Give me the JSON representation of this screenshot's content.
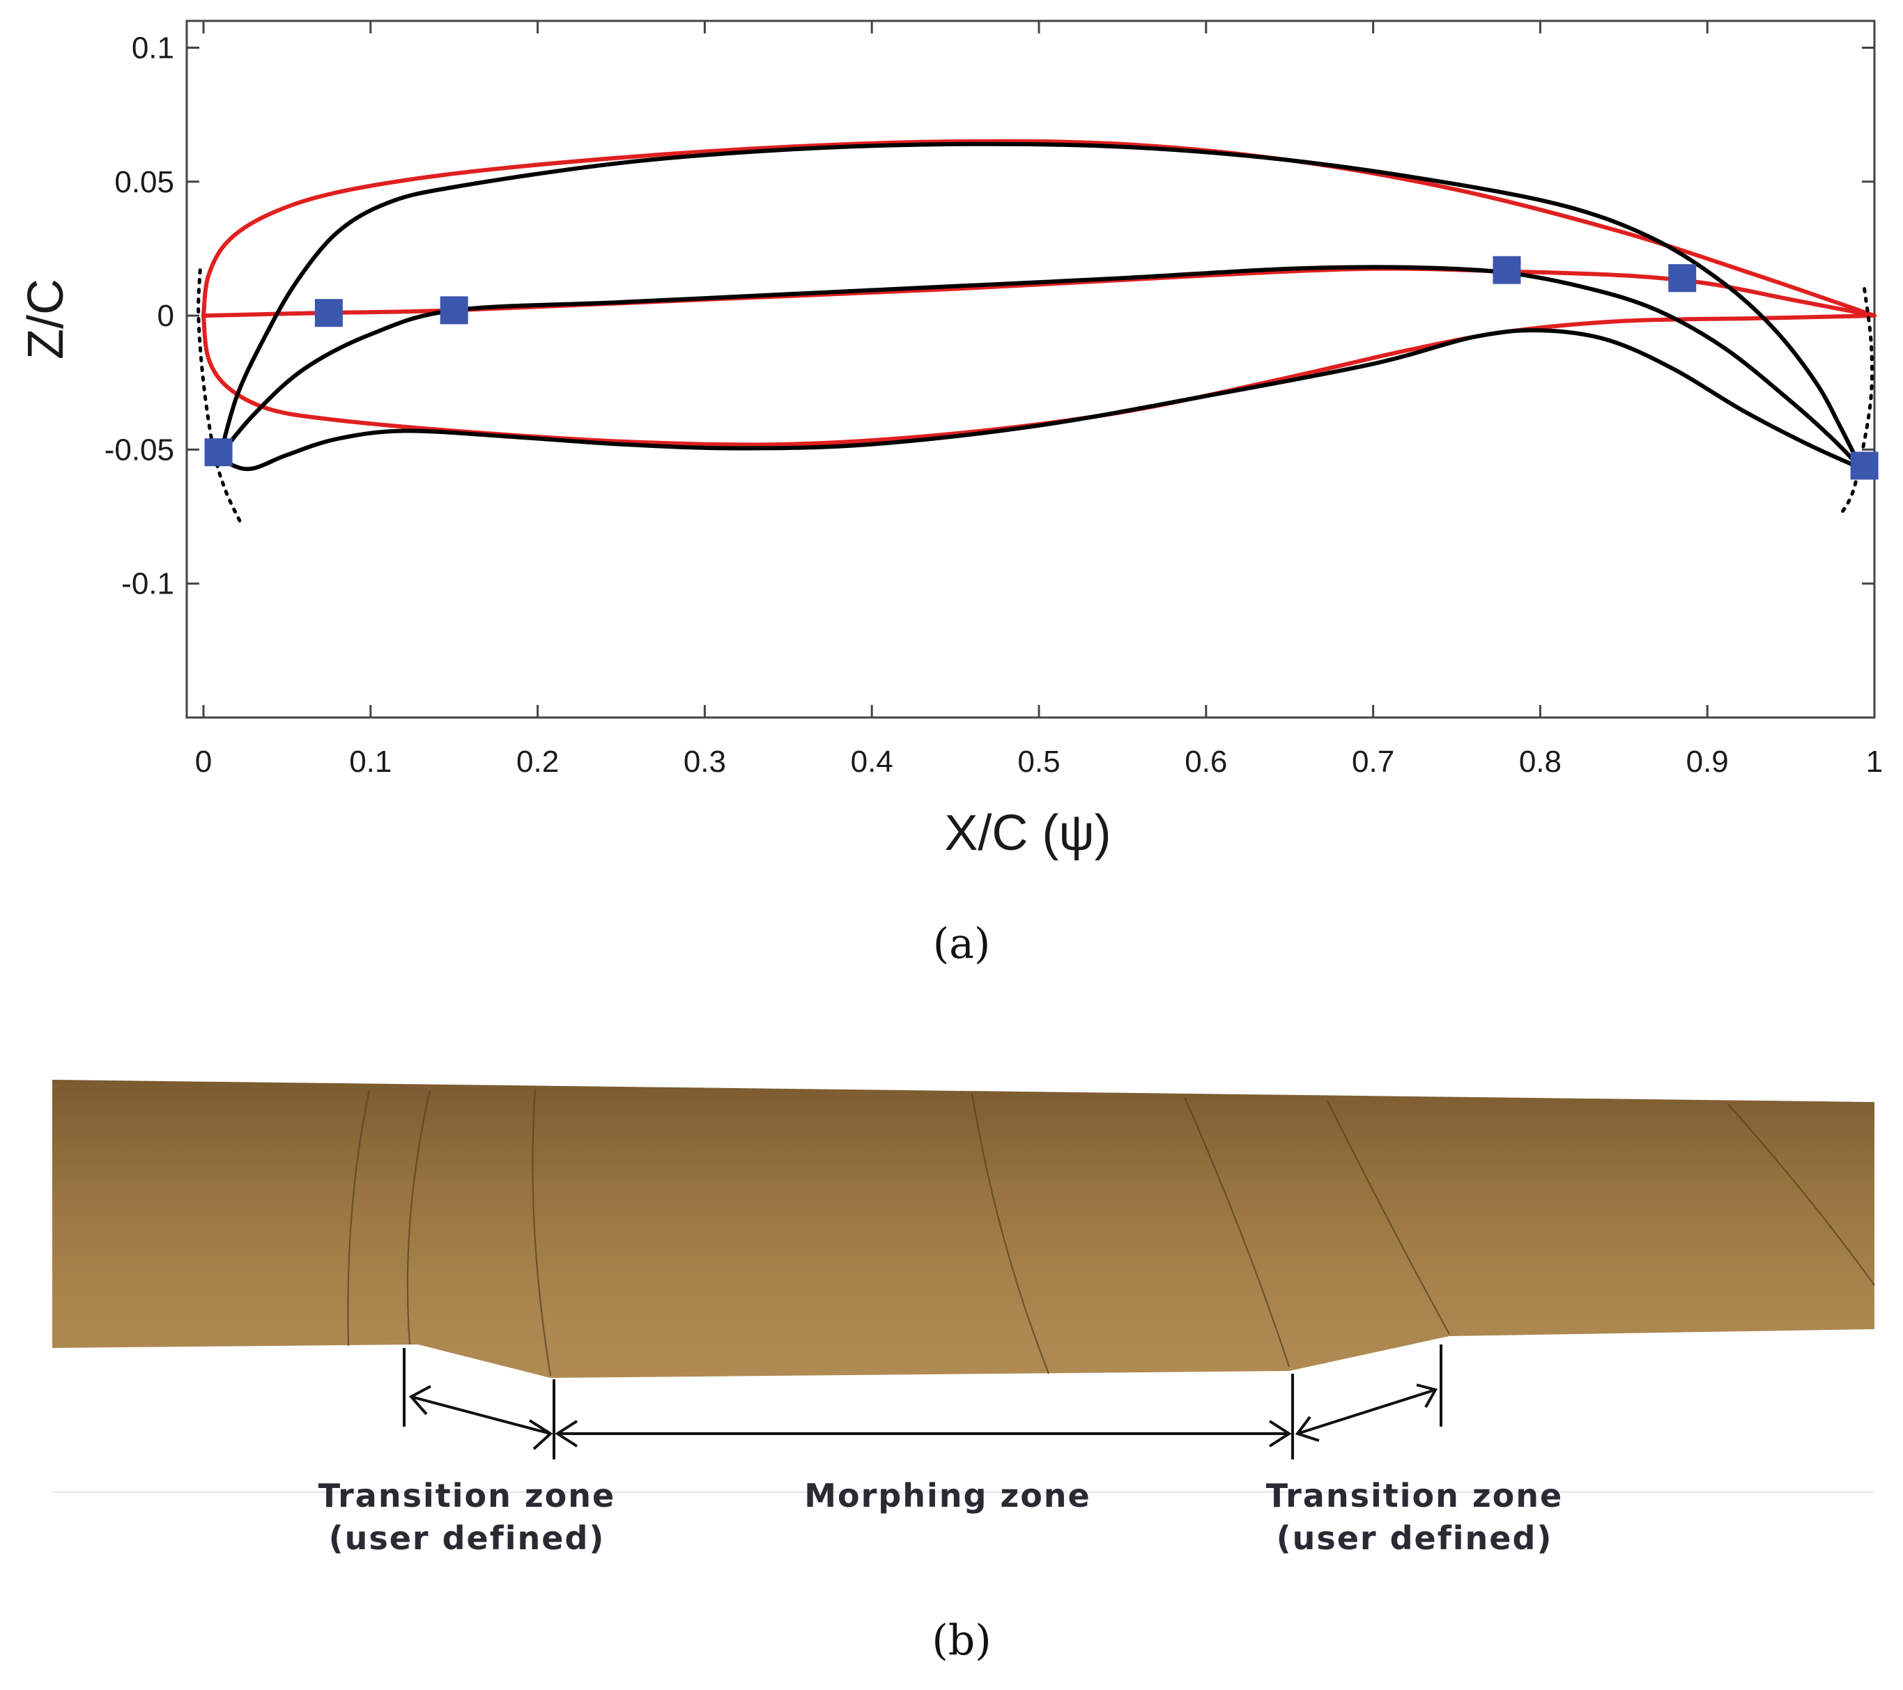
{
  "panels": {
    "a": {
      "caption": "(a)",
      "chart_data": {
        "type": "line",
        "xlabel": "X/C (ψ)",
        "ylabel": "Z/C",
        "xlim": [
          0,
          1
        ],
        "ylim": [
          -0.15,
          0.11
        ],
        "xticks": [
          0,
          0.1,
          0.2,
          0.3,
          0.4,
          0.5,
          0.6,
          0.7,
          0.8,
          0.9,
          1
        ],
        "yticks": [
          -0.1,
          -0.05,
          0,
          0.05,
          0.1
        ],
        "xtick_labels": [
          "0",
          "0.1",
          "0.2",
          "0.3",
          "0.4",
          "0.5",
          "0.6",
          "0.7",
          "0.8",
          "0.9",
          "1"
        ],
        "ytick_labels": [
          "-0.1",
          "-0.05",
          "0",
          "0.05",
          "0.1"
        ],
        "grid": false,
        "colors": {
          "baseline": "#e02020",
          "morphed": "#000000",
          "control_points": "#3b56ad",
          "guide": "#000000"
        },
        "series": [
          {
            "style": "baseline-upper",
            "color": "#e02020",
            "points": [
              [
                0,
                0
              ],
              [
                0.003,
                0.015
              ],
              [
                0.015,
                0.028
              ],
              [
                0.04,
                0.038
              ],
              [
                0.08,
                0.046
              ],
              [
                0.15,
                0.053
              ],
              [
                0.25,
                0.059
              ],
              [
                0.35,
                0.063
              ],
              [
                0.45,
                0.065
              ],
              [
                0.55,
                0.064
              ],
              [
                0.65,
                0.058
              ],
              [
                0.75,
                0.047
              ],
              [
                0.85,
                0.031
              ],
              [
                0.93,
                0.015
              ],
              [
                1,
                0
              ]
            ]
          },
          {
            "style": "baseline-lower",
            "color": "#e02020",
            "points": [
              [
                0,
                0
              ],
              [
                0.003,
                -0.016
              ],
              [
                0.015,
                -0.027
              ],
              [
                0.04,
                -0.035
              ],
              [
                0.08,
                -0.039
              ],
              [
                0.15,
                -0.043
              ],
              [
                0.25,
                -0.047
              ],
              [
                0.35,
                -0.048
              ],
              [
                0.45,
                -0.044
              ],
              [
                0.55,
                -0.036
              ],
              [
                0.65,
                -0.023
              ],
              [
                0.72,
                -0.013
              ],
              [
                0.78,
                -0.006
              ],
              [
                0.85,
                -0.002
              ],
              [
                0.93,
                -0.001
              ],
              [
                1,
                0
              ]
            ]
          },
          {
            "style": "baseline-camber",
            "color": "#e02020",
            "points": [
              [
                0,
                0
              ],
              [
                0.07,
                0.001
              ],
              [
                0.15,
                0.002
              ],
              [
                0.3,
                0.006
              ],
              [
                0.45,
                0.01
              ],
              [
                0.6,
                0.015
              ],
              [
                0.7,
                0.0175
              ],
              [
                0.78,
                0.0165
              ],
              [
                0.85,
                0.015
              ],
              [
                0.9,
                0.012
              ],
              [
                0.95,
                0.006
              ],
              [
                1,
                0
              ]
            ]
          },
          {
            "style": "morphed-upper",
            "color": "#000000",
            "points": [
              [
                0.01,
                -0.052
              ],
              [
                0.02,
                -0.03
              ],
              [
                0.035,
                -0.01
              ],
              [
                0.055,
                0.012
              ],
              [
                0.08,
                0.031
              ],
              [
                0.11,
                0.042
              ],
              [
                0.15,
                0.048
              ],
              [
                0.25,
                0.057
              ],
              [
                0.35,
                0.062
              ],
              [
                0.45,
                0.064
              ],
              [
                0.55,
                0.063
              ],
              [
                0.65,
                0.058
              ],
              [
                0.75,
                0.049
              ],
              [
                0.82,
                0.04
              ],
              [
                0.87,
                0.028
              ],
              [
                0.91,
                0.012
              ],
              [
                0.94,
                -0.005
              ],
              [
                0.965,
                -0.025
              ],
              [
                0.98,
                -0.042
              ],
              [
                0.992,
                -0.057
              ]
            ]
          },
          {
            "style": "morphed-lower",
            "color": "#000000",
            "points": [
              [
                0.01,
                -0.052
              ],
              [
                0.018,
                -0.056
              ],
              [
                0.03,
                -0.057
              ],
              [
                0.05,
                -0.052
              ],
              [
                0.08,
                -0.046
              ],
              [
                0.12,
                -0.043
              ],
              [
                0.18,
                -0.045
              ],
              [
                0.25,
                -0.048
              ],
              [
                0.32,
                -0.0495
              ],
              [
                0.4,
                -0.048
              ],
              [
                0.5,
                -0.041
              ],
              [
                0.6,
                -0.03
              ],
              [
                0.7,
                -0.018
              ],
              [
                0.76,
                -0.008
              ],
              [
                0.8,
                -0.0055
              ],
              [
                0.84,
                -0.009
              ],
              [
                0.88,
                -0.02
              ],
              [
                0.92,
                -0.035
              ],
              [
                0.96,
                -0.048
              ],
              [
                0.992,
                -0.057
              ]
            ]
          },
          {
            "style": "morphed-camber",
            "color": "#000000",
            "points": [
              [
                0.01,
                -0.052
              ],
              [
                0.03,
                -0.037
              ],
              [
                0.06,
                -0.02
              ],
              [
                0.1,
                -0.007
              ],
              [
                0.15,
                0.002
              ],
              [
                0.25,
                0.005
              ],
              [
                0.35,
                0.008
              ],
              [
                0.45,
                0.011
              ],
              [
                0.55,
                0.014
              ],
              [
                0.65,
                0.0175
              ],
              [
                0.72,
                0.018
              ],
              [
                0.78,
                0.016
              ],
              [
                0.83,
                0.01
              ],
              [
                0.87,
                0.002
              ],
              [
                0.91,
                -0.012
              ],
              [
                0.95,
                -0.032
              ],
              [
                0.975,
                -0.046
              ],
              [
                0.992,
                -0.057
              ]
            ]
          },
          {
            "style": "guide-dotted-le",
            "color": "#000000",
            "points": [
              [
                -0.002,
                0.017
              ],
              [
                -0.003,
                0.0
              ],
              [
                0.0,
                -0.025
              ],
              [
                0.006,
                -0.05
              ],
              [
                0.013,
                -0.065
              ],
              [
                0.022,
                -0.077
              ]
            ]
          },
          {
            "style": "guide-dotted-te",
            "color": "#000000",
            "points": [
              [
                0.994,
                0.01
              ],
              [
                0.998,
                -0.01
              ],
              [
                0.998,
                -0.03
              ],
              [
                0.993,
                -0.05
              ],
              [
                0.987,
                -0.066
              ],
              [
                0.98,
                -0.074
              ]
            ]
          }
        ],
        "control_points": [
          [
            0.075,
            0.001
          ],
          [
            0.15,
            0.002
          ],
          [
            0.78,
            0.017
          ],
          [
            0.885,
            0.014
          ],
          [
            0.009,
            -0.051
          ],
          [
            0.994,
            -0.056
          ]
        ]
      }
    },
    "b": {
      "caption": "(b)",
      "labels": {
        "left_transition_line1": "Transition zone",
        "left_transition_line2": "(user defined)",
        "morphing": "Morphing zone",
        "right_transition_line1": "Transition zone",
        "right_transition_line2": "(user defined)"
      },
      "colors": {
        "blade_top": "#7a5a30",
        "blade_mid": "#a6814b",
        "blade_bottom": "#b08b53"
      }
    }
  }
}
